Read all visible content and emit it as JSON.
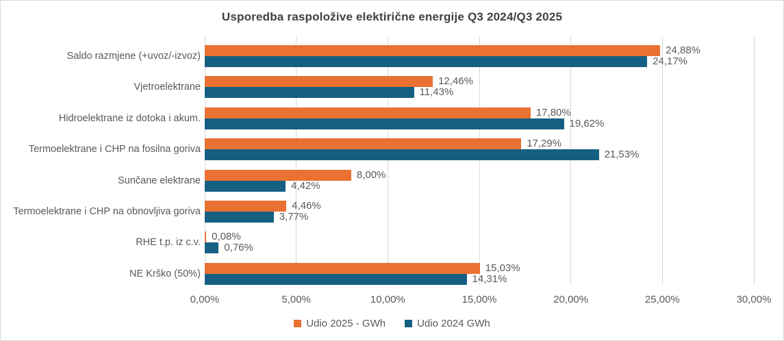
{
  "title": "Usporedba raspoložive elektirične energije Q3 2024/Q3 2025",
  "chart_data": {
    "type": "bar",
    "orientation": "horizontal",
    "title": "Usporedba raspoložive elektirične energije Q3 2024/Q3 2025",
    "categories": [
      "Saldo razmjene (+uvoz/-izvoz)",
      "Vjetroelektrane",
      "Hidroelektrane iz dotoka i akum.",
      "Termoelektrane i CHP na fosilna goriva",
      "Sunčane elektrane",
      "Termoelektrane i CHP na obnovljiva goriva",
      "RHE t.p. iz c.v.",
      "NE Krško (50%)"
    ],
    "series": [
      {
        "name": "Udio 2025 - GWh",
        "color": "#E97132",
        "values": [
          24.88,
          12.46,
          17.8,
          17.29,
          8.0,
          4.46,
          0.08,
          15.03
        ],
        "labels": [
          "24,88%",
          "12,46%",
          "17,80%",
          "17,29%",
          "8,00%",
          "4,46%",
          "0,08%",
          "15,03%"
        ]
      },
      {
        "name": "Udio 2024 GWh",
        "color": "#156082",
        "values": [
          24.17,
          11.43,
          19.62,
          21.53,
          4.42,
          3.77,
          0.76,
          14.31
        ],
        "labels": [
          "24,17%",
          "11,43%",
          "19,62%",
          "21,53%",
          "4,42%",
          "3,77%",
          "0,76%",
          "14,31%"
        ]
      }
    ],
    "xlim": [
      0,
      30
    ],
    "x_ticks": [
      "0,00%",
      "5,00%",
      "10,00%",
      "15,00%",
      "20,00%",
      "25,00%",
      "30,00%"
    ],
    "grid": true,
    "legend_position": "bottom",
    "colors": {
      "gridline": "#D9D9D9",
      "chart_border": "#D9D9D9",
      "axis_text": "#595959",
      "title_text": "#404040",
      "background": "#FFFFFF"
    }
  }
}
